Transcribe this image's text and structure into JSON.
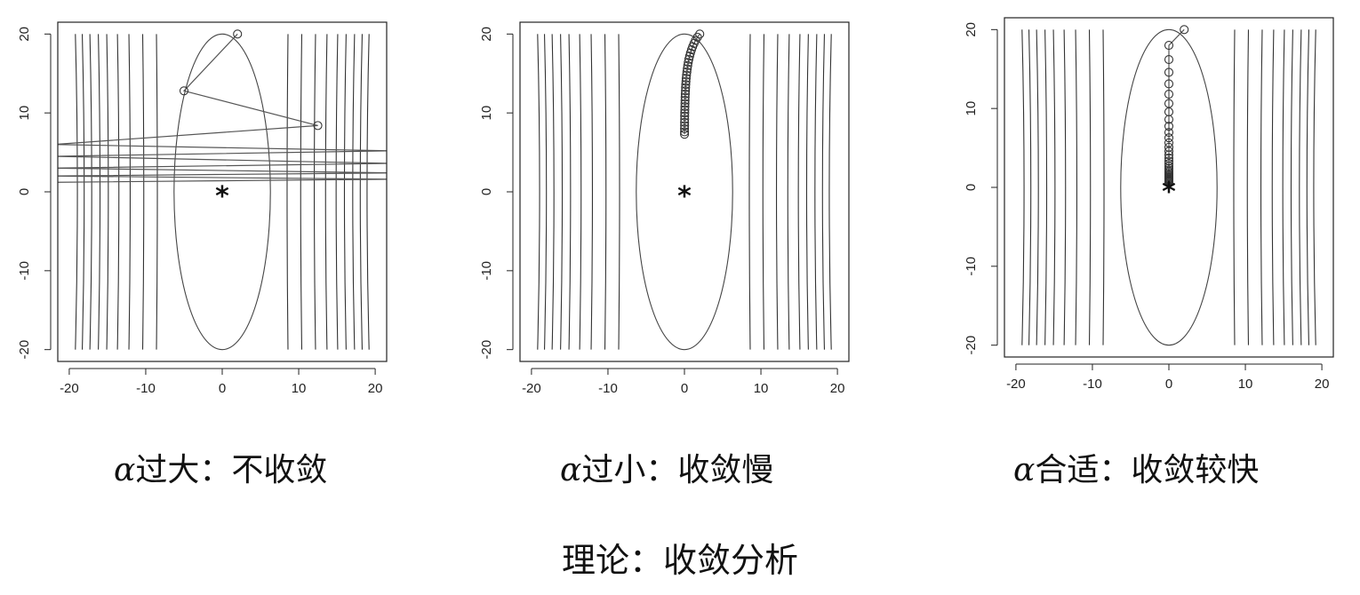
{
  "chart_data": [
    {
      "type": "line",
      "xlim": [
        -20,
        20
      ],
      "ylim": [
        -20,
        20
      ],
      "xticks": [
        "-20",
        "-10",
        "0",
        "10",
        "20"
      ],
      "yticks": [
        "-20",
        "-10",
        "0",
        "10",
        "20"
      ],
      "minimum_marker": "*",
      "minimum": [
        0,
        0
      ],
      "path": [
        [
          2,
          20
        ],
        [
          -5,
          12.8
        ],
        [
          12.5,
          8.4
        ],
        [
          -22,
          6.0
        ],
        [
          22,
          5.2
        ],
        [
          -22,
          4.5
        ],
        [
          22,
          3.6
        ],
        [
          -22,
          3.0
        ],
        [
          22,
          2.4
        ],
        [
          -22,
          2.0
        ],
        [
          22,
          1.6
        ],
        [
          -22,
          1.2
        ]
      ],
      "caption_prefix": "α",
      "caption": "过大：不收敛"
    },
    {
      "type": "line",
      "xlim": [
        -20,
        20
      ],
      "ylim": [
        -20,
        20
      ],
      "xticks": [
        "-20",
        "-10",
        "0",
        "10",
        "20"
      ],
      "yticks": [
        "-20",
        "-10",
        "0",
        "10",
        "20"
      ],
      "minimum_marker": "*",
      "minimum": [
        0,
        0
      ],
      "path": [
        [
          2,
          20
        ],
        [
          1.7,
          19.6
        ],
        [
          1.45,
          19.2
        ],
        [
          1.25,
          18.8
        ],
        [
          1.07,
          18.4
        ],
        [
          0.92,
          18.0
        ],
        [
          0.79,
          17.6
        ],
        [
          0.68,
          17.2
        ],
        [
          0.58,
          16.8
        ],
        [
          0.5,
          16.4
        ],
        [
          0.43,
          16.0
        ],
        [
          0.37,
          15.6
        ],
        [
          0.32,
          15.2
        ],
        [
          0.27,
          14.8
        ],
        [
          0.23,
          14.4
        ],
        [
          0.2,
          14.0
        ],
        [
          0.17,
          13.6
        ],
        [
          0.15,
          13.2
        ],
        [
          0.13,
          12.8
        ],
        [
          0.11,
          12.4
        ],
        [
          0.09,
          12.0
        ],
        [
          0.08,
          11.6
        ],
        [
          0.07,
          11.2
        ],
        [
          0.06,
          10.8
        ],
        [
          0.05,
          10.4
        ],
        [
          0.04,
          10.0
        ],
        [
          0.03,
          9.6
        ],
        [
          0.03,
          9.2
        ],
        [
          0.02,
          8.8
        ],
        [
          0.02,
          8.4
        ],
        [
          0.01,
          8.0
        ],
        [
          0.01,
          7.6
        ],
        [
          0.01,
          7.3
        ]
      ],
      "caption_prefix": "α",
      "caption": "过小：收敛慢"
    },
    {
      "type": "line",
      "xlim": [
        -20,
        20
      ],
      "ylim": [
        -20,
        20
      ],
      "xticks": [
        "-20",
        "-10",
        "0",
        "10",
        "20"
      ],
      "yticks": [
        "-20",
        "-10",
        "0",
        "10",
        "20"
      ],
      "minimum_marker": "*",
      "minimum": [
        0,
        0
      ],
      "path": [
        [
          2,
          20
        ],
        [
          0,
          18
        ],
        [
          0,
          16.2
        ],
        [
          0,
          14.58
        ],
        [
          0,
          13.12
        ],
        [
          0,
          11.81
        ],
        [
          0,
          10.63
        ],
        [
          0,
          9.57
        ],
        [
          0,
          8.61
        ],
        [
          0,
          7.75
        ],
        [
          0,
          6.97
        ],
        [
          0,
          6.28
        ],
        [
          0,
          5.65
        ],
        [
          0,
          5.08
        ],
        [
          0,
          4.58
        ],
        [
          0,
          4.12
        ],
        [
          0,
          3.71
        ],
        [
          0,
          3.34
        ],
        [
          0,
          3.0
        ],
        [
          0,
          2.7
        ],
        [
          0,
          2.43
        ],
        [
          0,
          2.19
        ],
        [
          0,
          1.97
        ],
        [
          0,
          1.77
        ],
        [
          0,
          1.59
        ],
        [
          0,
          1.43
        ],
        [
          0,
          1.29
        ],
        [
          0,
          1.16
        ],
        [
          0,
          1.04
        ],
        [
          0,
          0.94
        ],
        [
          0,
          0.85
        ],
        [
          0,
          0.76
        ],
        [
          0,
          0.69
        ],
        [
          0,
          0.62
        ]
      ],
      "caption_prefix": "α",
      "caption": "合适：收敛较快"
    }
  ],
  "footer": "理论：收敛分析"
}
